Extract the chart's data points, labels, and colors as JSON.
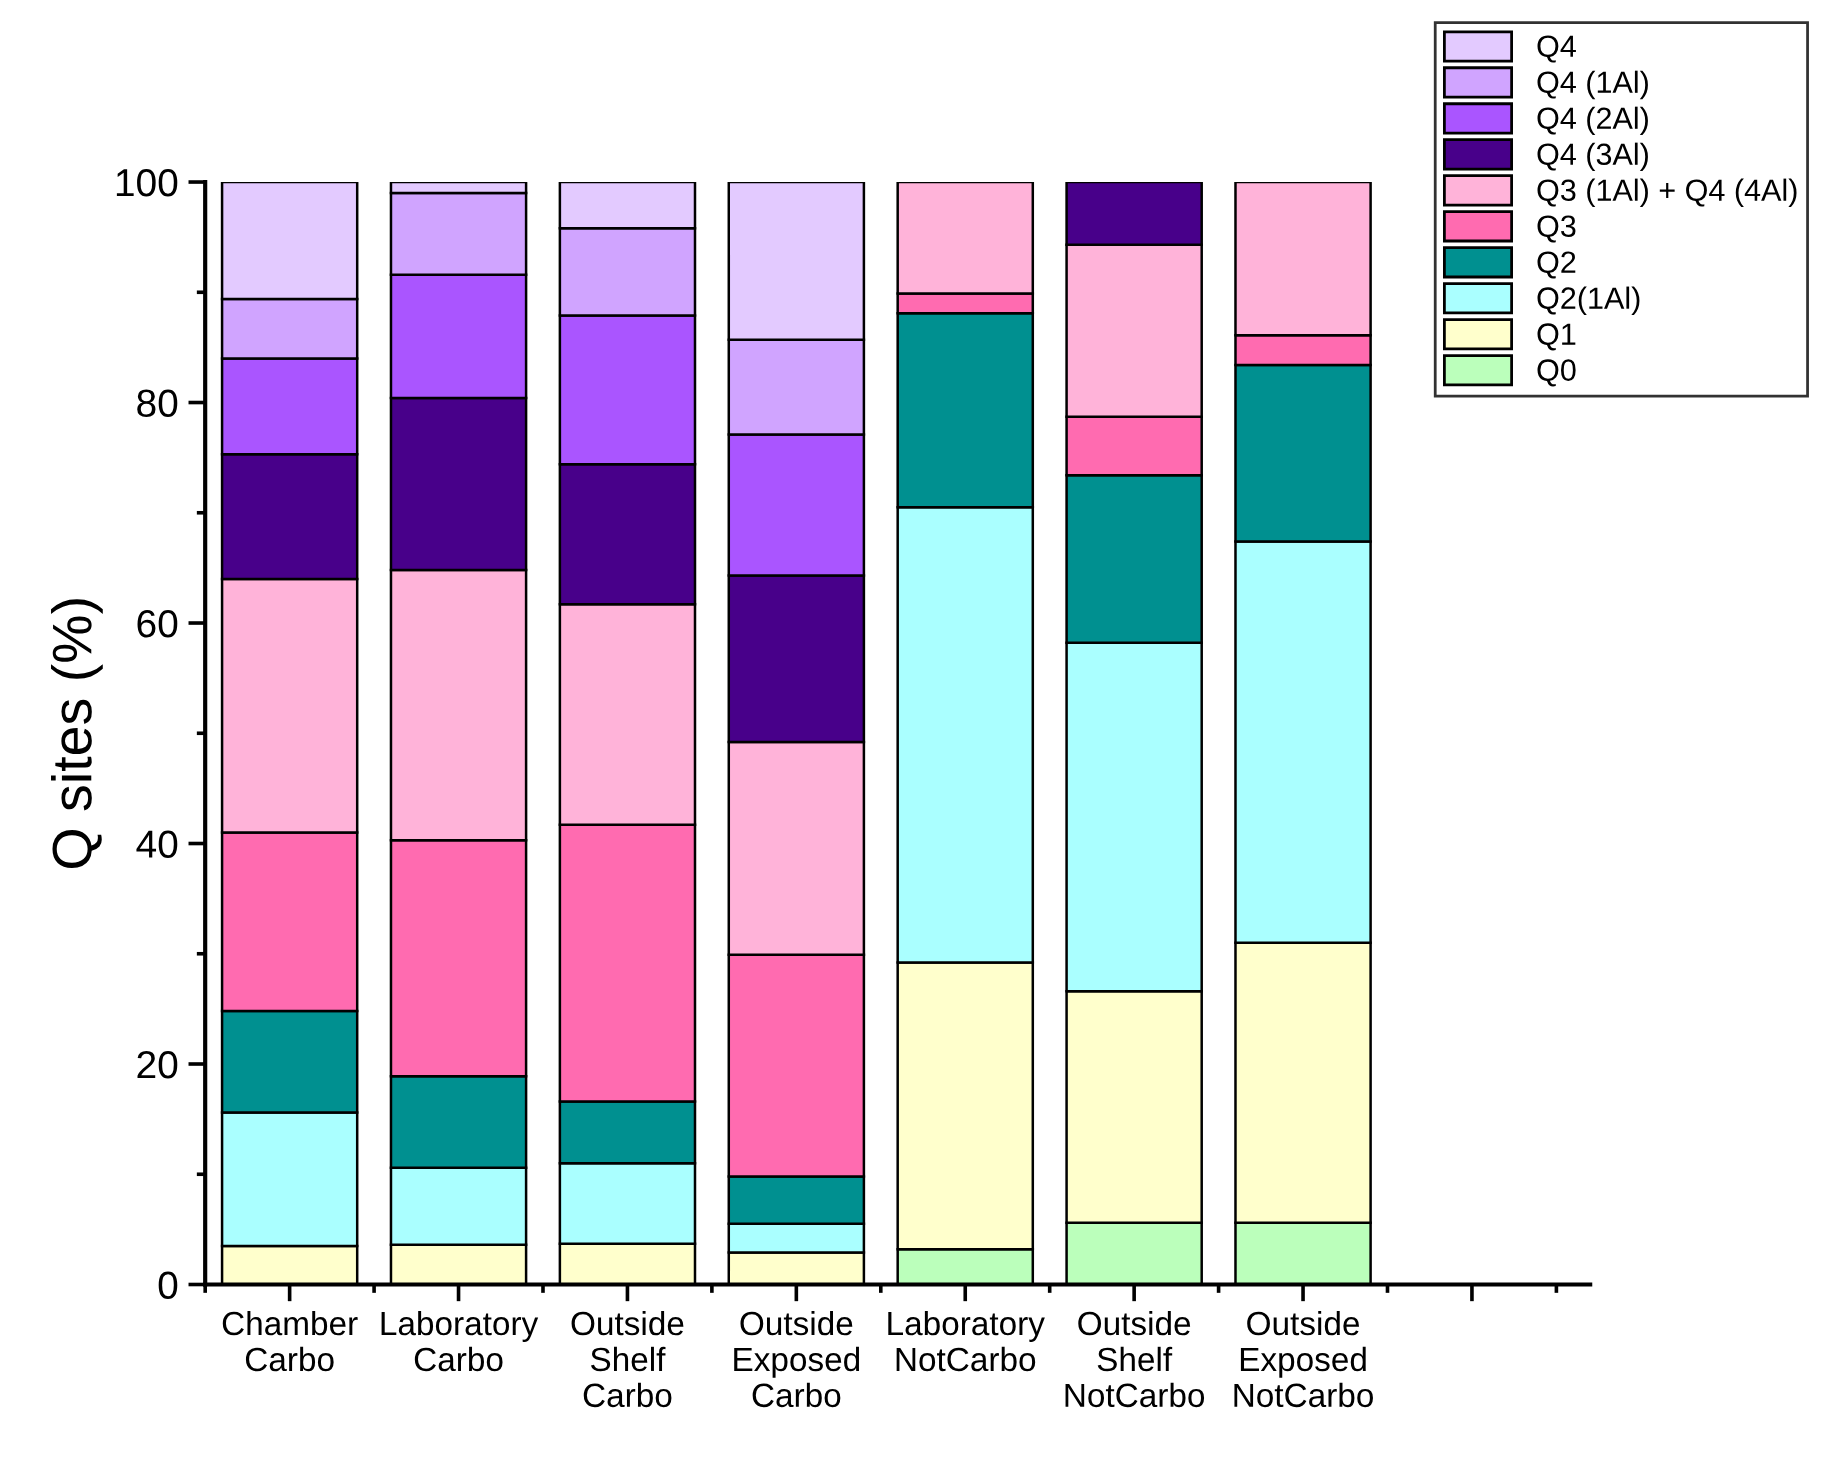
{
  "chart_data": {
    "type": "bar",
    "stacked": true,
    "ylabel": "Q sites (%)",
    "categories": [
      "Chamber\nCarbo",
      "Laboratory\nCarbo",
      "Outside\nShelf\nCarbo",
      "Outside\nExposed\nCarbo",
      "Laboratory\nNotCarbo",
      "Outside\nShelf\nNotCarbo",
      "Outside\nExposed\nNotCarbo",
      null
    ],
    "series": [
      {
        "name": "Q0",
        "color": "#bbffbb",
        "values": [
          0,
          null,
          0,
          0,
          3.2,
          5.6,
          5.6,
          null
        ]
      },
      {
        "name": "Q1",
        "color": "#ffffcc",
        "values": [
          3.5,
          3.6,
          3.7,
          2.9,
          26.0,
          21.0,
          25.4,
          null
        ]
      },
      {
        "name": "Q2(1Al)",
        "color": "#aaffff",
        "values": [
          12.1,
          7.0,
          7.3,
          2.6,
          41.3,
          31.6,
          36.4,
          null
        ]
      },
      {
        "name": "Q2",
        "color": "#009090",
        "values": [
          9.2,
          8.3,
          5.6,
          4.3,
          17.6,
          15.2,
          16.0,
          null
        ]
      },
      {
        "name": "Q3",
        "color": "#ff6bb0",
        "values": [
          16.2,
          21.4,
          25.1,
          20.1,
          1.8,
          5.3,
          2.7,
          null
        ]
      },
      {
        "name": "Q3 (1Al) + Q4 (4Al)",
        "color": "#ffb3d9",
        "values": [
          23.0,
          24.5,
          20.0,
          19.3,
          10.1,
          15.6,
          13.9,
          null
        ]
      },
      {
        "name": "Q4 (3Al)",
        "color": "#48008a",
        "values": [
          11.3,
          15.6,
          12.7,
          15.1,
          0,
          5.7,
          0,
          null
        ]
      },
      {
        "name": "Q4 (2Al)",
        "color": "#aa55ff",
        "values": [
          8.7,
          11.2,
          13.5,
          12.8,
          0,
          0,
          0,
          null
        ]
      },
      {
        "name": "Q4 (1Al)",
        "color": "#d0a4ff",
        "values": [
          5.4,
          7.4,
          7.9,
          8.6,
          0,
          0,
          0,
          null
        ]
      },
      {
        "name": "Q4",
        "color": "#e3caff",
        "values": [
          10.6,
          1.0,
          4.2,
          14.3,
          0,
          0,
          0,
          null
        ]
      }
    ],
    "ylim": [
      0,
      100
    ],
    "yticks": [
      0,
      20,
      40,
      60,
      80,
      100
    ],
    "grid": false,
    "legend": "top right"
  }
}
